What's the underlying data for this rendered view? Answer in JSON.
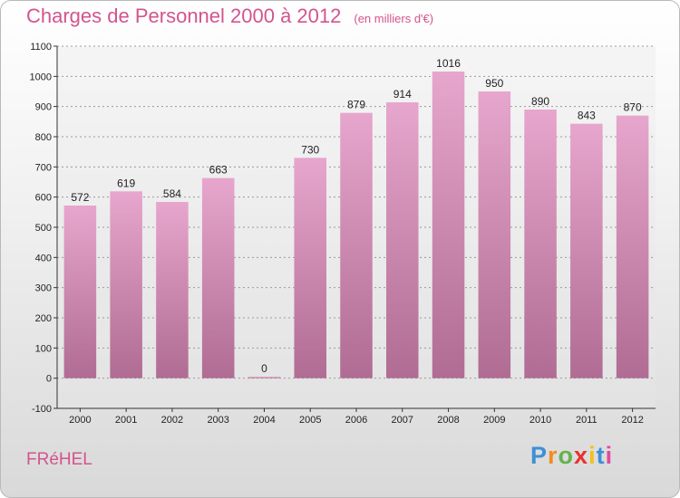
{
  "header": {
    "title": "Charges de Personnel 2000 à 2012",
    "subtitle": "(en milliers d'€)"
  },
  "footer": {
    "town": "FRéHEL",
    "logo": [
      "P",
      "r",
      "o",
      "x",
      "i",
      "t",
      "i"
    ]
  },
  "colors": {
    "title": "#d3548e",
    "bar_top": "#e7a6cd",
    "bar_bottom": "#b06c93",
    "grid": "#9a9a9a",
    "logo": [
      "#3d8fd6",
      "#f28c1f",
      "#63b34c",
      "#e8312e",
      "#f2c21a",
      "#3d8fd6",
      "#e14aa1"
    ]
  },
  "chart_data": {
    "type": "bar",
    "title": "Charges de Personnel 2000 à 2012",
    "categories": [
      "2000",
      "2001",
      "2002",
      "2003",
      "2004",
      "2005",
      "2006",
      "2007",
      "2008",
      "2009",
      "2010",
      "2011",
      "2012"
    ],
    "values": [
      572,
      619,
      584,
      663,
      0,
      730,
      879,
      914,
      1016,
      950,
      890,
      843,
      870
    ],
    "ylim": [
      -100,
      1100
    ],
    "yticks": [
      -100,
      0,
      100,
      200,
      300,
      400,
      500,
      600,
      700,
      800,
      900,
      1000,
      1100
    ],
    "grid": true,
    "legend": "none"
  }
}
